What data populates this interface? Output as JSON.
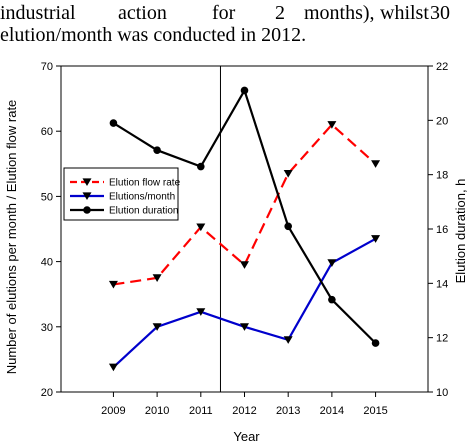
{
  "document": {
    "line1_words": [
      "industrial",
      "action",
      "for",
      "2",
      "months),",
      "whilst",
      "30"
    ],
    "line2": "elution/month was conducted in 2012."
  },
  "chart_data": {
    "type": "line",
    "x": [
      2009,
      2010,
      2011,
      2012,
      2013,
      2014,
      2015
    ],
    "x_ticks": [
      "2009",
      "2010",
      "2011",
      "2012",
      "2013",
      "2014",
      "2015"
    ],
    "xlabel": "Year",
    "ylabel": "Number of elutions per month / Elution flow rate",
    "y2label": "Elution duration, h",
    "ylim": [
      20,
      70
    ],
    "y_ticks": [
      "20",
      "30",
      "40",
      "50",
      "60",
      "70"
    ],
    "y2lim": [
      10,
      22
    ],
    "y2_ticks": [
      "10",
      "12",
      "14",
      "16",
      "18",
      "20",
      "22"
    ],
    "xlim": [
      2007.8,
      2016.2
    ],
    "vline_x": 2011.45,
    "series": [
      {
        "name": "Elution flow rate",
        "axis": "left",
        "color": "#ff0000",
        "dash": true,
        "marker": "triangle-down",
        "values": [
          36.5,
          37.5,
          45.3,
          39.5,
          53.5,
          61,
          55
        ]
      },
      {
        "name": "Elutions/month",
        "axis": "left",
        "color": "#0000cc",
        "dash": false,
        "marker": "triangle-down",
        "values": [
          23.8,
          30,
          32.3,
          30,
          28,
          39.8,
          43.5
        ]
      },
      {
        "name": "Elution duration",
        "axis": "right",
        "color": "#000000",
        "dash": false,
        "marker": "circle",
        "values": [
          19.9,
          18.9,
          18.3,
          21.1,
          16.1,
          13.4,
          11.8
        ]
      }
    ],
    "legend_position": "left-middle"
  }
}
